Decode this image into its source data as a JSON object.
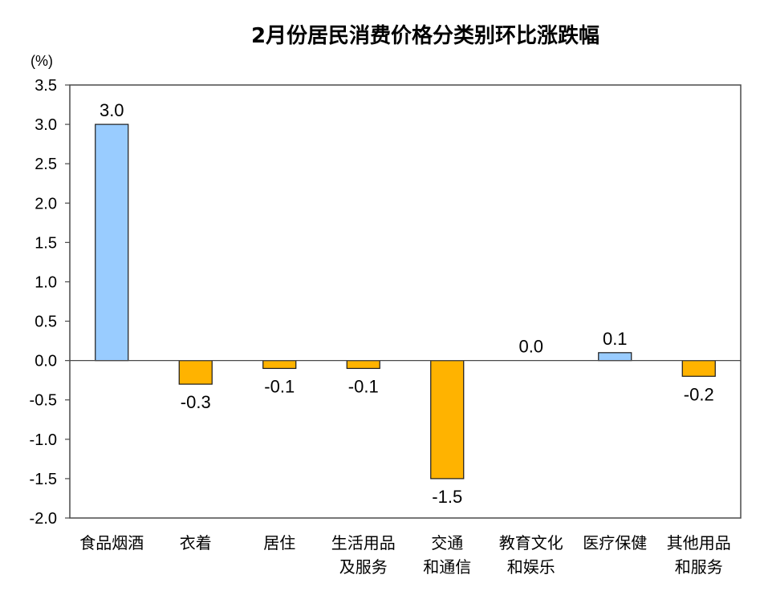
{
  "chart_data": {
    "type": "bar",
    "title": "2月份居民消费价格分类别环比涨跌幅",
    "unit_label": "(%)",
    "categories": [
      [
        "食品烟酒"
      ],
      [
        "衣着"
      ],
      [
        "居住"
      ],
      [
        "生活用品",
        "及服务"
      ],
      [
        "交通",
        "和通信"
      ],
      [
        "教育文化",
        "和娱乐"
      ],
      [
        "医疗保健"
      ],
      [
        "其他用品",
        "和服务"
      ]
    ],
    "values": [
      3.0,
      -0.3,
      -0.1,
      -0.1,
      -1.5,
      0.0,
      0.1,
      -0.2
    ],
    "value_labels": [
      "3.0",
      "-0.3",
      "-0.1",
      "-0.1",
      "-1.5",
      "0.0",
      "0.1",
      "-0.2"
    ],
    "yticks": [
      "3.5",
      "3.0",
      "2.5",
      "2.0",
      "1.5",
      "1.0",
      "0.5",
      "0.0",
      "-0.5",
      "-1.0",
      "-1.5",
      "-2.0"
    ],
    "ylim": [
      -2.0,
      3.5
    ],
    "colors": {
      "positive": "#99CCFF",
      "negative": "#FFB300",
      "bar_stroke": "#1a1a1a",
      "axis": "#4a4a4a"
    },
    "grid": false,
    "legend": "none"
  }
}
